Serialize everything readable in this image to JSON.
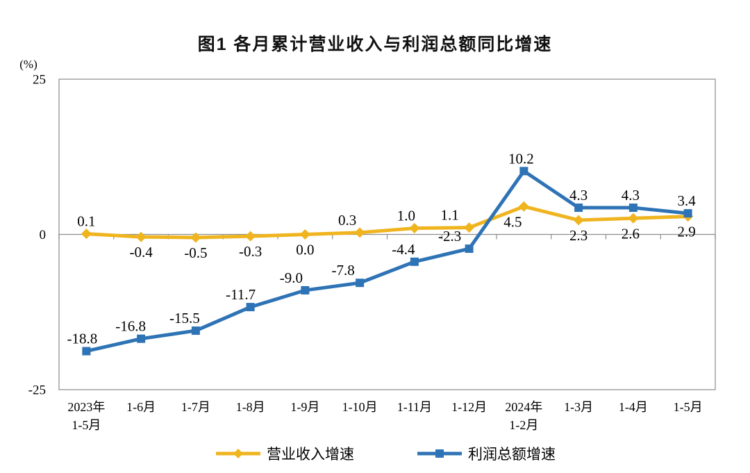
{
  "chart_data": {
    "type": "line",
    "title": "图1  各月累计营业收入与利润总额同比增速",
    "unit_label": "(%)",
    "categories": [
      "2023年\n1-5月",
      "1-6月",
      "1-7月",
      "1-8月",
      "1-9月",
      "1-10月",
      "1-11月",
      "1-12月",
      "2024年\n1-2月",
      "1-3月",
      "1-4月",
      "1-5月"
    ],
    "y_axis": {
      "min": -25,
      "max": 25,
      "ticks": [
        "25",
        "0",
        "-25"
      ],
      "tick_values": [
        25,
        0,
        -25
      ]
    },
    "grid": "off",
    "legend_position": "bottom",
    "series": [
      {
        "name": "营业收入增速",
        "marker": "diamond",
        "color": "#EFB41E",
        "values": [
          0.1,
          -0.4,
          -0.5,
          -0.3,
          0.0,
          0.3,
          1.0,
          1.1,
          4.5,
          2.3,
          2.6,
          2.9
        ],
        "labels": [
          "0.1",
          "-0.4",
          "-0.5",
          "-0.3",
          "0.0",
          "0.3",
          "1.0",
          "1.1",
          "4.5",
          "2.3",
          "2.6",
          "2.9"
        ],
        "label_sides": [
          "above",
          "below",
          "below",
          "below",
          "below",
          "above",
          "above",
          "above",
          "below",
          "below",
          "below",
          "below"
        ],
        "label_dx": [
          0,
          0,
          0,
          0,
          0,
          -18,
          -12,
          -28,
          -16,
          0,
          -4,
          -2
        ]
      },
      {
        "name": "利润总额增速",
        "marker": "square",
        "color": "#2E73B5",
        "values": [
          -18.8,
          -16.8,
          -15.5,
          -11.7,
          -9.0,
          -7.8,
          -4.4,
          -2.3,
          10.2,
          4.3,
          4.3,
          3.4
        ],
        "labels": [
          "-18.8",
          "-16.8",
          "-15.5",
          "-11.7",
          "-9.0",
          "-7.8",
          "-4.4",
          "-2.3",
          "10.2",
          "4.3",
          "4.3",
          "3.4"
        ],
        "label_sides": [
          "above",
          "above",
          "above",
          "above",
          "above",
          "above",
          "above",
          "above",
          "above",
          "above",
          "above",
          "above"
        ],
        "label_dx": [
          -6,
          -15,
          -16,
          -14,
          -20,
          -24,
          -16,
          -28,
          -4,
          0,
          -4,
          -2
        ]
      }
    ],
    "colors": {
      "axis": "#9b9b9b",
      "zero_line": "#8c8c8c",
      "text": "#000000"
    }
  }
}
